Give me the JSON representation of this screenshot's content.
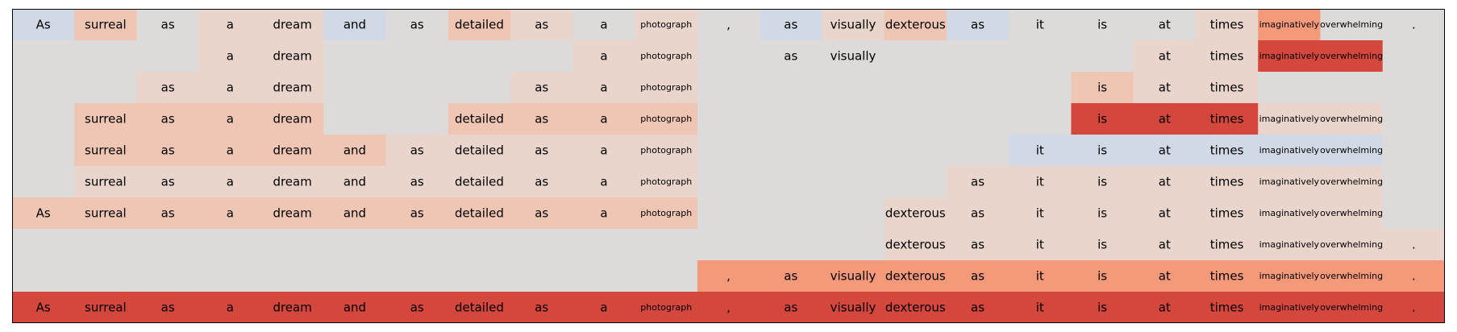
{
  "chart_data": {
    "type": "heatmap",
    "grid": false,
    "legend": "none",
    "tokens": [
      "As",
      "surreal",
      "as",
      "a",
      "dream",
      "and",
      "as",
      "detailed",
      "as",
      "a",
      "photograph",
      ",",
      "as",
      "visually",
      "dexterous",
      "as",
      "it",
      "is",
      "at",
      "times",
      "imaginatively",
      "overwhelming",
      "."
    ],
    "scale": {
      "neutral_color": "#dcdbda",
      "negative_color": "#d2d9e6",
      "positive_colors": [
        "#e9d5cb",
        "#efc6b4",
        "#f2bca4",
        "#f49a7b",
        "#d3473c"
      ]
    },
    "rows": [
      {
        "labels": [
          "As",
          "surreal",
          "as",
          "a",
          "dream",
          "and",
          "as",
          "detailed",
          "as",
          "a",
          "photograph",
          ",",
          "as",
          "visually",
          "dexterous",
          "as",
          "it",
          "is",
          "at",
          "times",
          "imaginatively",
          "overwhelming",
          "."
        ],
        "values": [
          -1,
          2,
          0,
          1,
          1,
          -1,
          0,
          2,
          1,
          0,
          1,
          0,
          -1,
          1,
          2,
          -1,
          0,
          0,
          0,
          1,
          4,
          0,
          0
        ]
      },
      {
        "labels": [
          "",
          "",
          "",
          "a",
          "dream",
          "",
          "",
          "",
          "",
          "a",
          "photograph",
          "",
          "as",
          "visually",
          "",
          "",
          "",
          "",
          "at",
          "times",
          "imaginatively",
          "overwhelming",
          ""
        ],
        "values": [
          0,
          0,
          0,
          1,
          1,
          0,
          0,
          0,
          0,
          1,
          1,
          0,
          0,
          0,
          0,
          0,
          0,
          0,
          1,
          1,
          5,
          5,
          0
        ]
      },
      {
        "labels": [
          "",
          "",
          "as",
          "a",
          "dream",
          "",
          "",
          "",
          "as",
          "a",
          "photograph",
          "",
          "",
          "",
          "",
          "",
          "",
          "is",
          "at",
          "times",
          "",
          "",
          ""
        ],
        "values": [
          0,
          0,
          1,
          1,
          1,
          0,
          0,
          0,
          1,
          1,
          1,
          0,
          0,
          0,
          0,
          0,
          0,
          2,
          1,
          1,
          0,
          0,
          0
        ]
      },
      {
        "labels": [
          "",
          "surreal",
          "as",
          "a",
          "dream",
          "",
          "",
          "detailed",
          "as",
          "a",
          "photograph",
          "",
          "",
          "",
          "",
          "",
          "",
          "is",
          "at",
          "times",
          "imaginatively",
          "overwhelming",
          ""
        ],
        "values": [
          0,
          2,
          2,
          2,
          2,
          0,
          0,
          2,
          2,
          2,
          2,
          0,
          0,
          0,
          0,
          0,
          0,
          5,
          5,
          5,
          1,
          1,
          0
        ]
      },
      {
        "labels": [
          "",
          "surreal",
          "as",
          "a",
          "dream",
          "and",
          "as",
          "detailed",
          "as",
          "a",
          "photograph",
          "",
          "",
          "",
          "",
          "",
          "it",
          "is",
          "at",
          "times",
          "imaginatively",
          "overwhelming",
          ""
        ],
        "values": [
          0,
          2,
          2,
          2,
          2,
          2,
          1,
          1,
          1,
          1,
          1,
          0,
          0,
          0,
          0,
          0,
          -1,
          -1,
          -1,
          -1,
          -1,
          -1,
          0
        ]
      },
      {
        "labels": [
          "",
          "surreal",
          "as",
          "a",
          "dream",
          "and",
          "as",
          "detailed",
          "as",
          "a",
          "photograph",
          "",
          "",
          "",
          "",
          "as",
          "it",
          "is",
          "at",
          "times",
          "imaginatively",
          "overwhelming",
          ""
        ],
        "values": [
          0,
          1,
          1,
          1,
          1,
          1,
          1,
          1,
          1,
          1,
          1,
          0,
          0,
          0,
          0,
          1,
          1,
          1,
          1,
          1,
          1,
          1,
          0
        ]
      },
      {
        "labels": [
          "As",
          "surreal",
          "as",
          "a",
          "dream",
          "and",
          "as",
          "detailed",
          "as",
          "a",
          "photograph",
          "",
          "",
          "",
          "dexterous",
          "as",
          "it",
          "is",
          "at",
          "times",
          "imaginatively",
          "overwhelming",
          ""
        ],
        "values": [
          2,
          2,
          2,
          2,
          2,
          2,
          2,
          2,
          2,
          2,
          2,
          0,
          0,
          0,
          1,
          1,
          1,
          1,
          1,
          1,
          1,
          1,
          0
        ]
      },
      {
        "labels": [
          "",
          "",
          "",
          "",
          "",
          "",
          "",
          "",
          "",
          "",
          "",
          "",
          "",
          "",
          "dexterous",
          "as",
          "it",
          "is",
          "at",
          "times",
          "imaginatively",
          "overwhelming",
          "."
        ],
        "values": [
          0,
          0,
          0,
          0,
          0,
          0,
          0,
          0,
          0,
          0,
          0,
          0,
          0,
          0,
          1,
          1,
          1,
          1,
          1,
          1,
          1,
          1,
          1
        ]
      },
      {
        "labels": [
          "",
          "",
          "",
          "",
          "",
          "",
          "",
          "",
          "",
          "",
          "",
          ",",
          "as",
          "visually",
          "dexterous",
          "as",
          "it",
          "is",
          "at",
          "times",
          "imaginatively",
          "overwhelming",
          "."
        ],
        "values": [
          0,
          0,
          0,
          0,
          0,
          0,
          0,
          0,
          0,
          0,
          0,
          4,
          4,
          4,
          4,
          4,
          4,
          4,
          4,
          4,
          4,
          4,
          4
        ]
      },
      {
        "labels": [
          "As",
          "surreal",
          "as",
          "a",
          "dream",
          "and",
          "as",
          "detailed",
          "as",
          "a",
          "photograph",
          ",",
          "as",
          "visually",
          "dexterous",
          "as",
          "it",
          "is",
          "at",
          "times",
          "imaginatively",
          "overwhelming",
          "."
        ],
        "values": [
          5,
          5,
          5,
          5,
          5,
          5,
          5,
          5,
          5,
          5,
          5,
          5,
          5,
          5,
          5,
          5,
          5,
          5,
          5,
          5,
          5,
          5,
          5
        ]
      }
    ]
  }
}
